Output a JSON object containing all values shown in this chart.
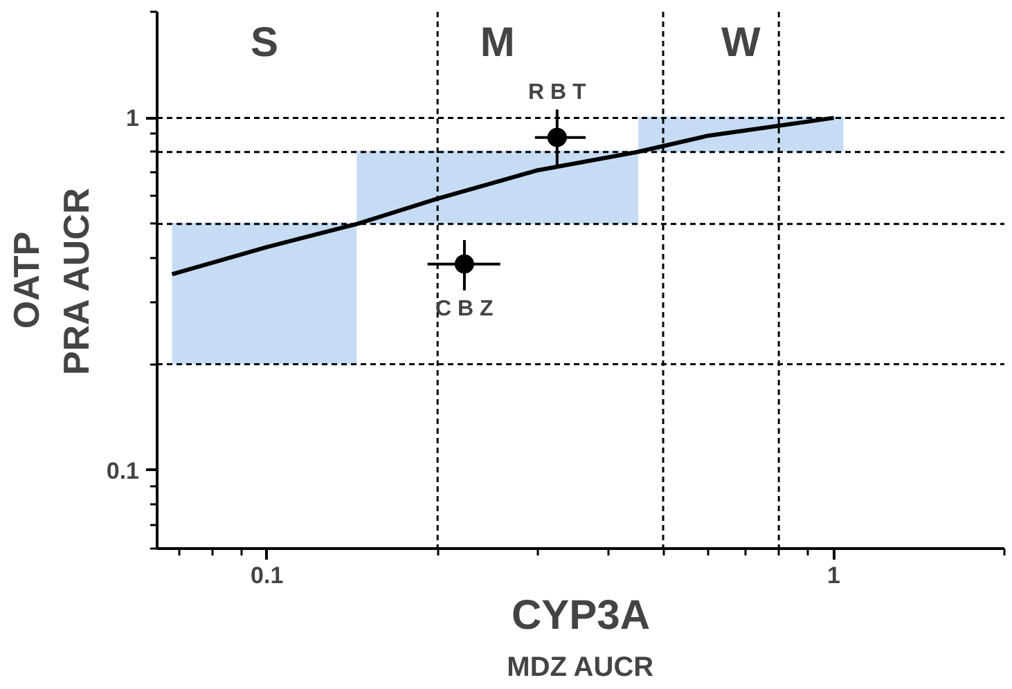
{
  "chart_data": {
    "type": "line",
    "xlabel": "CYP3A\nMDZ AUCR",
    "ylabel": "OATP\nPRA AUCR",
    "log": "xy",
    "xlim": [
      0.064,
      2
    ],
    "ylim": [
      0.06,
      2
    ],
    "xticks": [
      0.1,
      1
    ],
    "yticks": [
      0.1,
      1
    ],
    "grid": false,
    "series": [
      {
        "type": "line",
        "color": "#c6dcf5",
        "x": [
          0.068,
          0.144
        ],
        "lower": [
          0.2,
          0.2
        ],
        "upper": [
          0.5,
          0.5
        ],
        "values": [
          0.5,
          0.5
        ]
      },
      {
        "type": "line",
        "color": "#c6dcf5",
        "x": [
          0.144,
          0.452
        ],
        "lower": [
          0.5,
          0.5
        ],
        "upper": [
          0.8,
          0.8
        ],
        "values": [
          0.8,
          0.8
        ]
      },
      {
        "type": "line",
        "color": "#c6dcf5",
        "x": [
          0.452,
          1.04
        ],
        "lower": [
          0.8,
          0.8
        ],
        "upper": [
          1,
          1
        ],
        "values": [
          1,
          1
        ]
      },
      {
        "color": "#000000",
        "x": [
          0.068,
          0.1,
          0.144,
          0.2,
          0.3,
          0.45,
          0.6,
          0.8,
          1
        ],
        "values": [
          0.36,
          0.43,
          0.5,
          0.59,
          0.71,
          0.8,
          0.89,
          0.95,
          1.0
        ]
      },
      {
        "type": "scatter",
        "color": "#000000",
        "marker": "circle",
        "x": [
          0.325,
          0.223
        ],
        "values": [
          0.88,
          0.385
        ],
        "errors": [
          [
            0.73,
            1.056
          ],
          [
            0.324,
            0.45
          ]
        ],
        "xerrors": [
          [
            0.297,
            0.365
          ],
          [
            0.192,
            0.258
          ]
        ]
      }
    ],
    "ref_lines": [
      {
        "axis": "x",
        "value": 0.2,
        "color": "#000000",
        "line_style": "dashed"
      },
      {
        "axis": "x",
        "value": 0.5,
        "color": "#000000",
        "line_style": "dashed"
      },
      {
        "axis": "x",
        "value": 0.8,
        "color": "#000000",
        "line_style": "dashed"
      },
      {
        "axis": "y",
        "value": 0.2,
        "color": "#000000",
        "line_style": "dashed"
      },
      {
        "axis": "y",
        "value": 0.5,
        "color": "#000000",
        "line_style": "dashed"
      },
      {
        "axis": "y",
        "value": 0.8,
        "color": "#000000",
        "line_style": "dashed"
      },
      {
        "axis": "y",
        "value": 1,
        "color": "#000000",
        "line_style": "dashed"
      }
    ],
    "annotations": [
      "S",
      "M",
      "W",
      "R B T",
      "C B Z"
    ]
  }
}
